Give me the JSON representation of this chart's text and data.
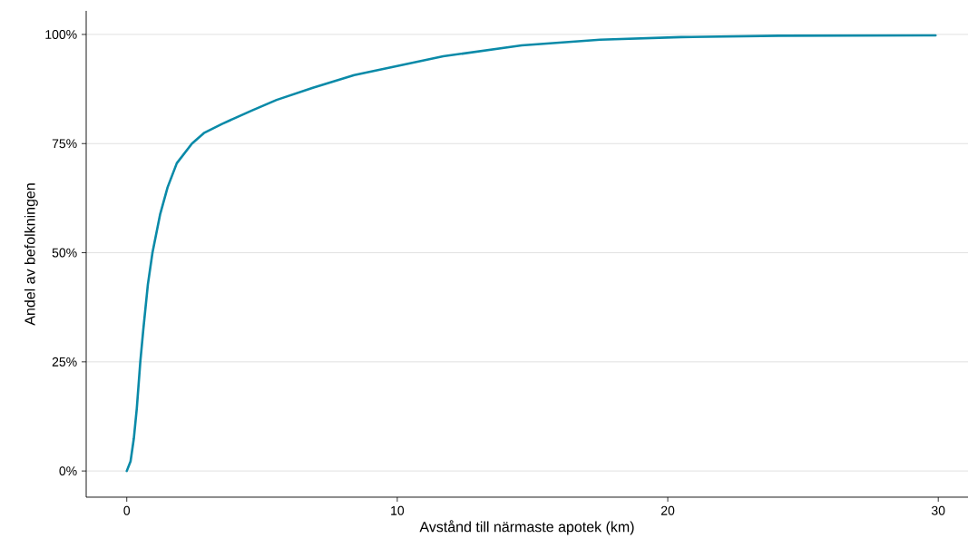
{
  "chart_data": {
    "type": "line",
    "xlabel": "Avstånd till närmaste apotek (km)",
    "ylabel": "Andel av befolkningen",
    "xlim": [
      -1.5,
      31.1
    ],
    "ylim": [
      -6,
      105.4
    ],
    "xticks": [
      0,
      10,
      20,
      30
    ],
    "yticks": [
      {
        "value": 0,
        "label": "0%"
      },
      {
        "value": 25,
        "label": "25%"
      },
      {
        "value": 50,
        "label": "50%"
      },
      {
        "value": 75,
        "label": "75%"
      },
      {
        "value": 100,
        "label": "100%"
      }
    ],
    "grid": "y",
    "marker": "none",
    "line_style": "solid",
    "series": [
      {
        "color": "#0a8aa8",
        "x": [
          0,
          0.14,
          0.26,
          0.37,
          0.5,
          0.61,
          0.78,
          0.95,
          1.23,
          1.51,
          1.85,
          2.41,
          2.85,
          3.52,
          4.64,
          5.54,
          6.88,
          8.41,
          9.8,
          11.7,
          14.6,
          17.5,
          20.5,
          24.1,
          29.9
        ],
        "values": [
          0,
          2.2,
          7.4,
          14.3,
          25,
          32.3,
          42.7,
          50,
          58.7,
          65,
          70.5,
          75,
          77.4,
          79.5,
          82.6,
          85,
          87.8,
          90.7,
          92.5,
          95,
          97.5,
          98.8,
          99.4,
          99.7,
          99.8
        ]
      }
    ]
  }
}
